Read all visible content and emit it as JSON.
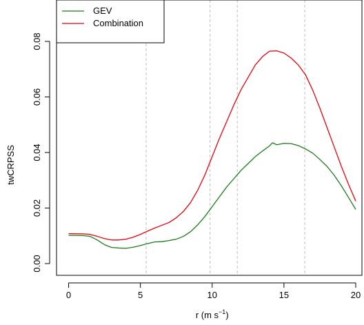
{
  "chart_data": {
    "type": "line",
    "xlabel": "r (m s",
    "xlabel_sup": "−1",
    "xlabel_tail": ")",
    "ylabel": "twCRPSS",
    "xlim": [
      0,
      20
    ],
    "ylim": [
      0,
      0.08
    ],
    "x_ticks": [
      0,
      5,
      10,
      15,
      20
    ],
    "x_tick_labels": [
      "0",
      "5",
      "10",
      "15",
      "20"
    ],
    "y_ticks": [
      0,
      0.02,
      0.04,
      0.06,
      0.08
    ],
    "y_tick_labels": [
      "0.00",
      "0.02",
      "0.04",
      "0.06",
      "0.08"
    ],
    "vlines": [
      5.4,
      9.85,
      11.75,
      16.45
    ],
    "legend_position": "top-left",
    "series": [
      {
        "name": "GEV",
        "color": "#1a7a1a",
        "x": [
          0,
          1,
          1.5,
          2,
          2.5,
          3,
          3.5,
          4,
          4.5,
          5,
          5.5,
          6,
          6.5,
          7,
          7.5,
          8,
          8.5,
          9,
          9.5,
          10,
          10.5,
          11,
          11.5,
          12,
          12.5,
          13,
          13.5,
          14,
          14.2,
          14.5,
          15,
          15.5,
          16,
          16.5,
          17,
          17.5,
          18,
          18.5,
          19,
          19.5,
          20
        ],
        "y": [
          0.0102,
          0.0101,
          0.0098,
          0.0085,
          0.0068,
          0.0058,
          0.0056,
          0.0055,
          0.0059,
          0.0065,
          0.0072,
          0.0078,
          0.0079,
          0.0083,
          0.0088,
          0.0098,
          0.0115,
          0.014,
          0.017,
          0.0205,
          0.024,
          0.0275,
          0.0305,
          0.0335,
          0.036,
          0.0385,
          0.0405,
          0.0424,
          0.0435,
          0.0428,
          0.0433,
          0.0432,
          0.0425,
          0.0413,
          0.0398,
          0.0375,
          0.035,
          0.0318,
          0.028,
          0.0238,
          0.0195
        ]
      },
      {
        "name": "Combination",
        "color": "#e8000b",
        "x": [
          0,
          1,
          1.5,
          2,
          2.5,
          3,
          3.5,
          4,
          4.5,
          5,
          5.5,
          6,
          6.5,
          7,
          7.5,
          8,
          8.5,
          9,
          9.5,
          10,
          10.5,
          11,
          11.5,
          12,
          12.5,
          13,
          13.5,
          14,
          14.5,
          15,
          15.5,
          16,
          16.5,
          17,
          17.5,
          18,
          18.5,
          19,
          19.5,
          20
        ],
        "y": [
          0.0108,
          0.0107,
          0.0105,
          0.0098,
          0.009,
          0.0085,
          0.0085,
          0.0088,
          0.0095,
          0.0105,
          0.0117,
          0.0128,
          0.0138,
          0.0148,
          0.0165,
          0.0188,
          0.022,
          0.0265,
          0.032,
          0.0385,
          0.045,
          0.051,
          0.057,
          0.0625,
          0.067,
          0.0715,
          0.0745,
          0.0765,
          0.0766,
          0.0758,
          0.074,
          0.0715,
          0.068,
          0.0625,
          0.056,
          0.049,
          0.042,
          0.035,
          0.0285,
          0.0225
        ]
      }
    ]
  }
}
